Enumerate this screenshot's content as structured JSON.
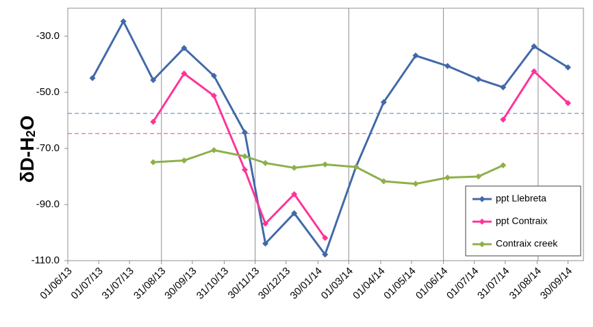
{
  "chart_data": {
    "type": "line",
    "ylabel": "δD-H₂O",
    "ylabel_parts": {
      "main": "δD-H",
      "sub": "2",
      "end": "O"
    },
    "ylim": [
      -110,
      -20
    ],
    "yticks": [
      -30,
      -50,
      -70,
      -90,
      -110
    ],
    "ytick_labels": [
      "-30.0",
      "-50.0",
      "-70.0",
      "-90.0",
      "-110.0"
    ],
    "xlim": [
      "2013-06-01",
      "2014-10-15"
    ],
    "x_tick_dates": [
      "2013-06-01",
      "2013-07-01",
      "2013-07-31",
      "2013-08-31",
      "2013-09-30",
      "2013-10-31",
      "2013-11-30",
      "2013-12-30",
      "2014-01-30",
      "2014-03-01",
      "2014-04-01",
      "2014-05-01",
      "2014-06-01",
      "2014-07-01",
      "2014-07-31",
      "2014-08-31",
      "2014-09-30"
    ],
    "x_tick_labels": [
      "01/06/13",
      "01/07/13",
      "31/07/13",
      "31/08/13",
      "30/09/13",
      "31/10/13",
      "30/11/13",
      "30/12/13",
      "30/01/14",
      "01/03/14",
      "01/04/14",
      "01/05/14",
      "01/06/14",
      "01/07/14",
      "31/07/14",
      "31/08/14",
      "30/09/14"
    ],
    "vertical_gridlines": [
      "2013-08-31",
      "2013-11-30",
      "2014-03-01",
      "2014-06-01",
      "2014-09-01"
    ],
    "reference_lines": [
      {
        "y": -57.5,
        "color": "#4F81BD"
      },
      {
        "y": -64.7,
        "color": "#FF3399"
      }
    ],
    "legend_position": "bottom-right",
    "series": [
      {
        "name": "ppt Llebreta",
        "color": "#4169A8",
        "points": [
          {
            "x": "2013-06-25",
            "y": -44.9
          },
          {
            "x": "2013-07-25",
            "y": -24.7
          },
          {
            "x": "2013-08-23",
            "y": -45.6
          },
          {
            "x": "2013-09-22",
            "y": -34.2
          },
          {
            "x": "2013-10-21",
            "y": -44.1
          },
          {
            "x": "2013-11-20",
            "y": -64.3
          },
          {
            "x": "2013-12-10",
            "y": -103.9
          },
          {
            "x": "2014-01-07",
            "y": -93.1
          },
          {
            "x": "2014-02-06",
            "y": -107.8
          },
          {
            "x": "2014-03-08",
            "y": -76.6
          },
          {
            "x": "2014-04-04",
            "y": -53.5
          },
          {
            "x": "2014-05-05",
            "y": -36.9
          },
          {
            "x": "2014-06-05",
            "y": -40.6
          },
          {
            "x": "2014-07-05",
            "y": -45.3
          },
          {
            "x": "2014-07-29",
            "y": -48.2
          },
          {
            "x": "2014-08-28",
            "y": -33.6
          },
          {
            "x": "2014-09-30",
            "y": -41.1
          }
        ]
      },
      {
        "name": "ppt Contraix",
        "color": "#FF3399",
        "segments": [
          [
            {
              "x": "2013-08-23",
              "y": -60.5
            },
            {
              "x": "2013-09-22",
              "y": -43.3
            },
            {
              "x": "2013-10-21",
              "y": -51.2
            },
            {
              "x": "2013-11-20",
              "y": -77.6
            },
            {
              "x": "2013-12-10",
              "y": -96.8
            },
            {
              "x": "2014-01-07",
              "y": -86.3
            },
            {
              "x": "2014-02-06",
              "y": -101.9
            }
          ],
          [
            {
              "x": "2014-07-29",
              "y": -59.7
            },
            {
              "x": "2014-08-28",
              "y": -42.5
            },
            {
              "x": "2014-09-30",
              "y": -53.8
            }
          ]
        ]
      },
      {
        "name": "Contraix creek",
        "color": "#8DB04A",
        "points": [
          {
            "x": "2013-08-23",
            "y": -74.9
          },
          {
            "x": "2013-09-22",
            "y": -74.3
          },
          {
            "x": "2013-10-21",
            "y": -70.6
          },
          {
            "x": "2013-11-20",
            "y": -72.8
          },
          {
            "x": "2013-12-10",
            "y": -75.2
          },
          {
            "x": "2014-01-07",
            "y": -76.9
          },
          {
            "x": "2014-02-06",
            "y": -75.7
          },
          {
            "x": "2014-03-08",
            "y": -76.6
          },
          {
            "x": "2014-04-04",
            "y": -81.7
          },
          {
            "x": "2014-05-05",
            "y": -82.6
          },
          {
            "x": "2014-06-05",
            "y": -80.4
          },
          {
            "x": "2014-07-05",
            "y": -80.0
          },
          {
            "x": "2014-07-29",
            "y": -76.0
          }
        ]
      }
    ]
  }
}
